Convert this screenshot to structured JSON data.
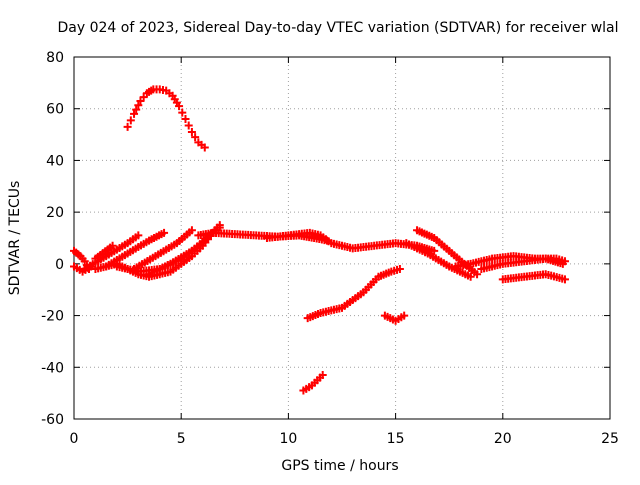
{
  "chart_data": {
    "type": "scatter",
    "title": "Day 024 of 2023, Sidereal Day-to-day VTEC variation (SDTVAR) for receiver wlal",
    "xlabel": "GPS time / hours",
    "ylabel": "SDTVAR / TECUs",
    "xlim": [
      0,
      25
    ],
    "ylim": [
      -60,
      80
    ],
    "xticks": [
      0,
      5,
      10,
      15,
      20,
      25
    ],
    "yticks": [
      -60,
      -40,
      -20,
      0,
      20,
      40,
      60,
      80
    ],
    "xtick_labels": [
      "0",
      "5",
      "10",
      "15",
      "20",
      "25"
    ],
    "ytick_labels": [
      "-60",
      "-40",
      "-20",
      "0",
      "20",
      "40",
      "60",
      "80"
    ],
    "grid": true,
    "marker": "plus",
    "color": "#ff0000",
    "series": [
      {
        "name": "track-high-arc",
        "x": [
          2.5,
          2.8,
          3.1,
          3.4,
          3.7,
          4.0,
          4.3,
          4.6,
          4.9,
          5.2,
          5.5,
          5.8,
          6.1
        ],
        "y": [
          53,
          58,
          63,
          66,
          67.5,
          67.5,
          67,
          65,
          61,
          56,
          51,
          47,
          45
        ]
      },
      {
        "name": "track-main-band",
        "x": [
          5.8,
          6.5,
          7.5,
          8.5,
          9.5,
          10.5,
          11.2,
          11.8
        ],
        "y": [
          11,
          12,
          11.5,
          11,
          10.5,
          11,
          10,
          9
        ]
      },
      {
        "name": "track-main-band-2",
        "x": [
          9.0,
          10.0,
          11.0,
          11.5,
          12.0,
          13.0,
          14.0,
          15.0,
          16.0,
          16.8
        ],
        "y": [
          10,
          11,
          12,
          11,
          8,
          6,
          7,
          8,
          7,
          5
        ]
      },
      {
        "name": "track-rise-1",
        "x": [
          1.0,
          1.5,
          2.0,
          2.5,
          3.0,
          3.5,
          4.0,
          4.5,
          5.0,
          5.5,
          6.0,
          6.5
        ],
        "y": [
          -2,
          -1,
          0,
          -2,
          -4,
          -5,
          -4,
          -3,
          0,
          3,
          7,
          12
        ]
      },
      {
        "name": "track-rise-2",
        "x": [
          2.0,
          3.0,
          4.0,
          5.0,
          6.0,
          6.8
        ],
        "y": [
          -1,
          -3,
          -2,
          2,
          8,
          15
        ]
      },
      {
        "name": "track-rise-3",
        "x": [
          3.5,
          4.5,
          5.5,
          6.5,
          6.8
        ],
        "y": [
          -4,
          0,
          5,
          12,
          14
        ]
      },
      {
        "name": "track-slope-a",
        "x": [
          0.5,
          1.5,
          2.5,
          3.0
        ],
        "y": [
          -2,
          3,
          8,
          11
        ]
      },
      {
        "name": "track-slope-b",
        "x": [
          1.5,
          2.5,
          3.5,
          4.2
        ],
        "y": [
          -1,
          4,
          9,
          12
        ]
      },
      {
        "name": "track-slope-c",
        "x": [
          2.8,
          3.8,
          4.8,
          5.5
        ],
        "y": [
          -2,
          3,
          8,
          13
        ]
      },
      {
        "name": "track-slope-d",
        "x": [
          1.0,
          1.8
        ],
        "y": [
          2,
          7
        ]
      },
      {
        "name": "track-left-edge",
        "x": [
          0.0,
          0.3,
          0.5,
          0.7
        ],
        "y": [
          5,
          3,
          1,
          -2
        ]
      },
      {
        "name": "track-left-edge-2",
        "x": [
          0.0,
          0.4,
          0.8
        ],
        "y": [
          -1,
          -3,
          -1
        ]
      },
      {
        "name": "track-descend",
        "x": [
          16.0,
          16.8,
          17.5,
          18.2,
          18.8
        ],
        "y": [
          13,
          10,
          5,
          0,
          -4
        ]
      },
      {
        "name": "track-descend-2",
        "x": [
          15.5,
          16.5,
          17.5,
          18.5
        ],
        "y": [
          8,
          4,
          -1,
          -5
        ]
      },
      {
        "name": "track-right-band",
        "x": [
          17.8,
          18.5,
          19.5,
          20.5,
          21.5,
          22.5,
          22.9
        ],
        "y": [
          -1,
          0,
          2,
          3,
          2,
          2,
          1
        ]
      },
      {
        "name": "track-right-band-2",
        "x": [
          19.0,
          20.0,
          21.0,
          22.0,
          22.8
        ],
        "y": [
          -2,
          0,
          1,
          2,
          0
        ]
      },
      {
        "name": "track-right-band-3",
        "x": [
          20.0,
          21.0,
          22.0,
          22.9
        ],
        "y": [
          -6,
          -5,
          -4,
          -6
        ]
      },
      {
        "name": "track-neg-20",
        "x": [
          10.9,
          11.5,
          12.5,
          13.5,
          14.2,
          14.8,
          15.2
        ],
        "y": [
          -21,
          -19,
          -17,
          -11,
          -5,
          -3,
          -2
        ]
      },
      {
        "name": "track-neg-20-b",
        "x": [
          14.5,
          15.0,
          15.4
        ],
        "y": [
          -20,
          -22,
          -20
        ]
      },
      {
        "name": "track-neg-47",
        "x": [
          10.7,
          11.1,
          11.6
        ],
        "y": [
          -49,
          -47,
          -43
        ]
      }
    ]
  }
}
